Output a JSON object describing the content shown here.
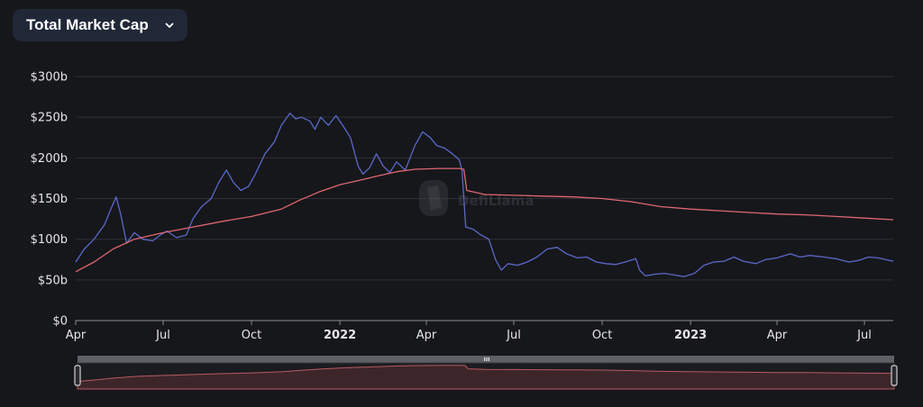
{
  "dropdown": {
    "label": "Total Market Cap",
    "icon": "chevron-down-icon"
  },
  "watermark": {
    "text": "DefiLlama",
    "icon": "llama-logo-icon"
  },
  "colors": {
    "tvl": "#5b68c9",
    "mcap": "#e0676f",
    "grid": "#2e3035",
    "text": "#e6e6e6"
  },
  "chart_data": {
    "type": "line",
    "title": "",
    "xlabel": "",
    "ylabel": "",
    "ylim": [
      0,
      300
    ],
    "y_unit": "b",
    "x_start": "2021-04-01",
    "x_end": "2023-07-31",
    "grid": "horizontal",
    "y_ticks": [
      {
        "value": 0,
        "label": "$0"
      },
      {
        "value": 50,
        "label": "$50b"
      },
      {
        "value": 100,
        "label": "$100b"
      },
      {
        "value": 150,
        "label": "$150b"
      },
      {
        "value": 200,
        "label": "$200b"
      },
      {
        "value": 250,
        "label": "$250b"
      },
      {
        "value": 300,
        "label": "$300b"
      }
    ],
    "x_ticks": [
      {
        "date": "2021-04-01",
        "label": "Apr",
        "bold": false
      },
      {
        "date": "2021-07-01",
        "label": "Jul",
        "bold": false
      },
      {
        "date": "2021-10-01",
        "label": "Oct",
        "bold": false
      },
      {
        "date": "2022-01-01",
        "label": "2022",
        "bold": true
      },
      {
        "date": "2022-04-01",
        "label": "Apr",
        "bold": false
      },
      {
        "date": "2022-07-01",
        "label": "Jul",
        "bold": false
      },
      {
        "date": "2022-10-01",
        "label": "Oct",
        "bold": false
      },
      {
        "date": "2023-01-01",
        "label": "2023",
        "bold": true
      },
      {
        "date": "2023-04-01",
        "label": "Apr",
        "bold": false
      },
      {
        "date": "2023-07-01",
        "label": "Jul",
        "bold": false
      }
    ],
    "series": [
      {
        "color": "#5b68c9",
        "points": [
          [
            "2021-04-01",
            72
          ],
          [
            "2021-04-10",
            88
          ],
          [
            "2021-04-20",
            100
          ],
          [
            "2021-05-01",
            118
          ],
          [
            "2021-05-08",
            138
          ],
          [
            "2021-05-13",
            152
          ],
          [
            "2021-05-18",
            130
          ],
          [
            "2021-05-24",
            95
          ],
          [
            "2021-06-01",
            108
          ],
          [
            "2021-06-10",
            100
          ],
          [
            "2021-06-20",
            98
          ],
          [
            "2021-06-28",
            105
          ],
          [
            "2021-07-05",
            110
          ],
          [
            "2021-07-15",
            102
          ],
          [
            "2021-07-25",
            105
          ],
          [
            "2021-08-01",
            125
          ],
          [
            "2021-08-10",
            140
          ],
          [
            "2021-08-20",
            150
          ],
          [
            "2021-08-28",
            170
          ],
          [
            "2021-09-05",
            185
          ],
          [
            "2021-09-12",
            170
          ],
          [
            "2021-09-20",
            160
          ],
          [
            "2021-09-28",
            165
          ],
          [
            "2021-10-05",
            180
          ],
          [
            "2021-10-15",
            205
          ],
          [
            "2021-10-25",
            220
          ],
          [
            "2021-11-01",
            240
          ],
          [
            "2021-11-10",
            255
          ],
          [
            "2021-11-16",
            248
          ],
          [
            "2021-11-22",
            250
          ],
          [
            "2021-12-01",
            245
          ],
          [
            "2021-12-06",
            235
          ],
          [
            "2021-12-12",
            250
          ],
          [
            "2021-12-20",
            240
          ],
          [
            "2021-12-28",
            252
          ],
          [
            "2022-01-05",
            238
          ],
          [
            "2022-01-12",
            225
          ],
          [
            "2022-01-20",
            190
          ],
          [
            "2022-01-25",
            180
          ],
          [
            "2022-02-01",
            188
          ],
          [
            "2022-02-08",
            205
          ],
          [
            "2022-02-15",
            190
          ],
          [
            "2022-02-22",
            182
          ],
          [
            "2022-03-01",
            195
          ],
          [
            "2022-03-10",
            185
          ],
          [
            "2022-03-20",
            215
          ],
          [
            "2022-03-28",
            232
          ],
          [
            "2022-04-05",
            225
          ],
          [
            "2022-04-12",
            215
          ],
          [
            "2022-04-20",
            212
          ],
          [
            "2022-04-28",
            205
          ],
          [
            "2022-05-05",
            198
          ],
          [
            "2022-05-08",
            185
          ],
          [
            "2022-05-12",
            115
          ],
          [
            "2022-05-20",
            112
          ],
          [
            "2022-05-28",
            105
          ],
          [
            "2022-06-05",
            100
          ],
          [
            "2022-06-12",
            75
          ],
          [
            "2022-06-18",
            62
          ],
          [
            "2022-06-25",
            70
          ],
          [
            "2022-07-05",
            68
          ],
          [
            "2022-07-15",
            72
          ],
          [
            "2022-07-25",
            78
          ],
          [
            "2022-08-05",
            88
          ],
          [
            "2022-08-15",
            90
          ],
          [
            "2022-08-25",
            82
          ],
          [
            "2022-09-05",
            77
          ],
          [
            "2022-09-15",
            78
          ],
          [
            "2022-09-25",
            72
          ],
          [
            "2022-10-05",
            70
          ],
          [
            "2022-10-15",
            69
          ],
          [
            "2022-10-25",
            72
          ],
          [
            "2022-11-05",
            76
          ],
          [
            "2022-11-09",
            62
          ],
          [
            "2022-11-15",
            55
          ],
          [
            "2022-11-25",
            57
          ],
          [
            "2022-12-05",
            58
          ],
          [
            "2022-12-15",
            56
          ],
          [
            "2022-12-25",
            54
          ],
          [
            "2023-01-05",
            58
          ],
          [
            "2023-01-15",
            68
          ],
          [
            "2023-01-25",
            72
          ],
          [
            "2023-02-05",
            73
          ],
          [
            "2023-02-15",
            78
          ],
          [
            "2023-02-25",
            73
          ],
          [
            "2023-03-10",
            70
          ],
          [
            "2023-03-20",
            75
          ],
          [
            "2023-04-01",
            77
          ],
          [
            "2023-04-15",
            82
          ],
          [
            "2023-04-25",
            78
          ],
          [
            "2023-05-05",
            80
          ],
          [
            "2023-05-20",
            78
          ],
          [
            "2023-06-01",
            76
          ],
          [
            "2023-06-15",
            72
          ],
          [
            "2023-06-25",
            74
          ],
          [
            "2023-07-05",
            78
          ],
          [
            "2023-07-15",
            77
          ],
          [
            "2023-07-31",
            73
          ]
        ]
      },
      {
        "color": "#e0676f",
        "points": [
          [
            "2021-04-01",
            60
          ],
          [
            "2021-04-20",
            72
          ],
          [
            "2021-05-10",
            88
          ],
          [
            "2021-06-01",
            100
          ],
          [
            "2021-07-01",
            108
          ],
          [
            "2021-08-01",
            115
          ],
          [
            "2021-09-01",
            122
          ],
          [
            "2021-10-01",
            128
          ],
          [
            "2021-11-01",
            137
          ],
          [
            "2021-11-20",
            148
          ],
          [
            "2021-12-10",
            158
          ],
          [
            "2022-01-01",
            167
          ],
          [
            "2022-01-20",
            172
          ],
          [
            "2022-02-10",
            178
          ],
          [
            "2022-03-01",
            183
          ],
          [
            "2022-03-20",
            186
          ],
          [
            "2022-04-15",
            187
          ],
          [
            "2022-05-05",
            187
          ],
          [
            "2022-05-10",
            186
          ],
          [
            "2022-05-13",
            160
          ],
          [
            "2022-06-01",
            155
          ],
          [
            "2022-07-01",
            154
          ],
          [
            "2022-08-01",
            153
          ],
          [
            "2022-09-01",
            152
          ],
          [
            "2022-10-01",
            150
          ],
          [
            "2022-11-01",
            146
          ],
          [
            "2022-12-01",
            140
          ],
          [
            "2023-01-01",
            137
          ],
          [
            "2023-02-01",
            135
          ],
          [
            "2023-03-01",
            133
          ],
          [
            "2023-04-01",
            131
          ],
          [
            "2023-05-01",
            130
          ],
          [
            "2023-06-01",
            128
          ],
          [
            "2023-07-01",
            126
          ],
          [
            "2023-07-31",
            124
          ]
        ]
      }
    ]
  },
  "slider": {
    "handle_icon": "grip-icon"
  }
}
